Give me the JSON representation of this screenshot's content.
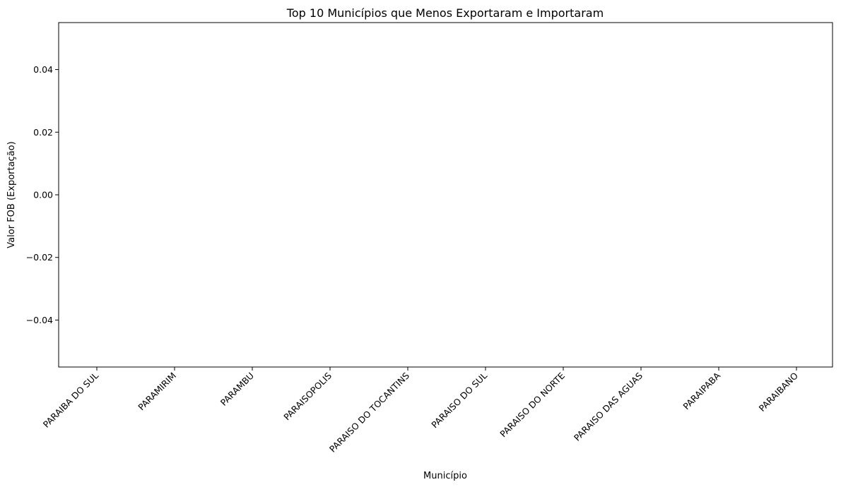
{
  "chart_data": {
    "type": "bar",
    "title": "Top 10 Municípios que Menos Exportaram e Importaram",
    "xlabel": "Município",
    "ylabel": "Valor FOB (Exportação)",
    "categories": [
      "PARAIBA DO SUL",
      "PARAMIRIM",
      "PARAMBU",
      "PARAISOPOLIS",
      "PARAISO DO TOCANTINS",
      "PARAISO DO SUL",
      "PARAISO DO NORTE",
      "PARAISO DAS AGUAS",
      "PARAIPABA",
      "PARAIBANO"
    ],
    "values": [
      0,
      0,
      0,
      0,
      0,
      0,
      0,
      0,
      0,
      0
    ],
    "ylim": [
      -0.055,
      0.055
    ],
    "yticks": [
      -0.04,
      -0.02,
      0.0,
      0.02,
      0.04
    ],
    "ytick_labels": [
      "−0.04",
      "−0.02",
      "0.00",
      "0.02",
      "0.04"
    ],
    "grid": false,
    "legend": "none"
  }
}
